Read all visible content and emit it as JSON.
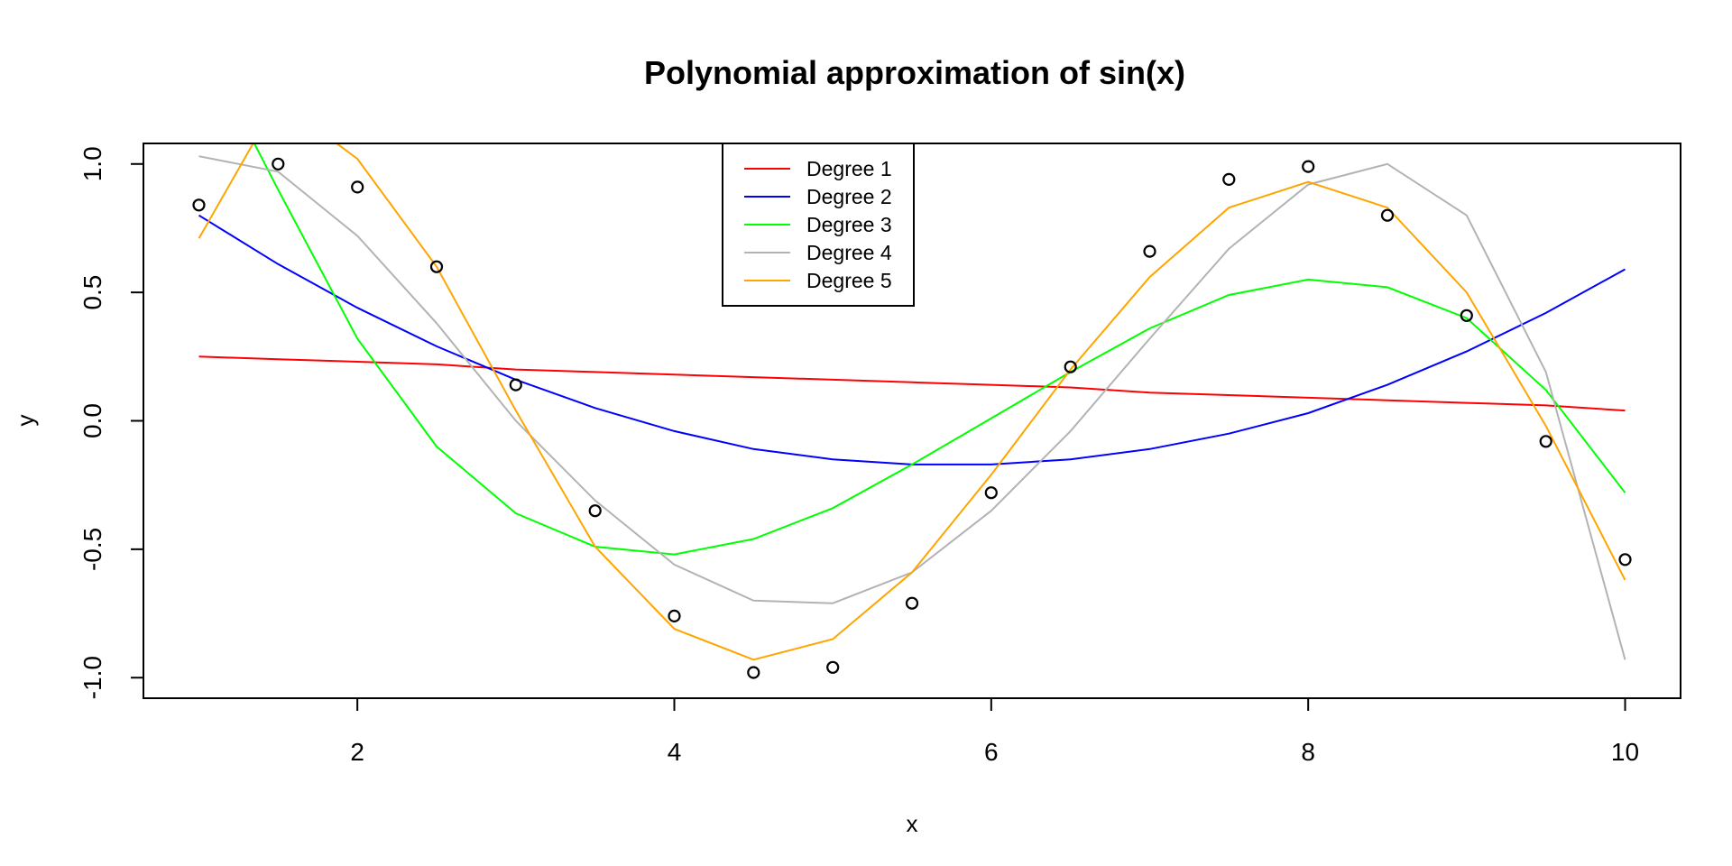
{
  "chart_data": {
    "type": "line",
    "title": "Polynomial approximation of sin(x)",
    "xlabel": "x",
    "ylabel": "y",
    "xlim": [
      0.65,
      10.35
    ],
    "ylim": [
      -1.08,
      1.08
    ],
    "x_ticks": [
      2,
      4,
      6,
      8,
      10
    ],
    "x_tick_labels": [
      "2",
      "4",
      "6",
      "8",
      "10"
    ],
    "y_ticks": [
      -1.0,
      -0.5,
      0.0,
      0.5,
      1.0
    ],
    "y_tick_labels": [
      "-1.0",
      "-0.5",
      "0.0",
      "0.5",
      "1.0"
    ],
    "grid": false,
    "legend_position": "top-center",
    "points": {
      "x": [
        1,
        1.5,
        2,
        2.5,
        3,
        3.5,
        4,
        4.5,
        5,
        5.5,
        6,
        6.5,
        7,
        7.5,
        8,
        8.5,
        9,
        9.5,
        10
      ],
      "y": [
        0.84,
        1.0,
        0.91,
        0.6,
        0.14,
        -0.35,
        -0.76,
        -0.98,
        -0.96,
        -0.71,
        -0.28,
        0.21,
        0.66,
        0.94,
        0.99,
        0.8,
        0.41,
        -0.08,
        -0.54
      ]
    },
    "x": [
      1,
      1.5,
      2,
      2.5,
      3,
      3.5,
      4,
      4.5,
      5,
      5.5,
      6,
      6.5,
      7,
      7.5,
      8,
      8.5,
      9,
      9.5,
      10
    ],
    "series": [
      {
        "name": "Degree 1",
        "color": "#ff0000",
        "values": [
          0.25,
          0.24,
          0.23,
          0.22,
          0.2,
          0.19,
          0.18,
          0.17,
          0.16,
          0.15,
          0.14,
          0.13,
          0.11,
          0.1,
          0.09,
          0.08,
          0.07,
          0.06,
          0.04
        ]
      },
      {
        "name": "Degree 2",
        "color": "#0000ff",
        "values": [
          0.8,
          0.61,
          0.44,
          0.29,
          0.16,
          0.05,
          -0.04,
          -0.11,
          -0.15,
          -0.17,
          -0.17,
          -0.15,
          -0.11,
          -0.05,
          0.03,
          0.14,
          0.27,
          0.42,
          0.59
        ]
      },
      {
        "name": "Degree 3",
        "color": "#00ff00",
        "values": [
          1.5,
          0.9,
          0.32,
          -0.1,
          -0.36,
          -0.49,
          -0.52,
          -0.46,
          -0.34,
          -0.17,
          0.01,
          0.19,
          0.36,
          0.49,
          0.55,
          0.52,
          0.4,
          0.12,
          -0.28
        ]
      },
      {
        "name": "Degree 4",
        "color": "#b3b3b3",
        "values": [
          1.03,
          0.97,
          0.72,
          0.38,
          0.0,
          -0.31,
          -0.56,
          -0.7,
          -0.71,
          -0.59,
          -0.35,
          -0.04,
          0.32,
          0.67,
          0.92,
          1.0,
          0.8,
          0.19,
          -0.93
        ]
      },
      {
        "name": "Degree 5",
        "color": "#ffa500",
        "values": [
          0.71,
          1.25,
          1.02,
          0.6,
          0.04,
          -0.49,
          -0.81,
          -0.93,
          -0.85,
          -0.59,
          -0.21,
          0.2,
          0.56,
          0.83,
          0.93,
          0.83,
          0.5,
          -0.02,
          -0.62
        ]
      }
    ]
  }
}
